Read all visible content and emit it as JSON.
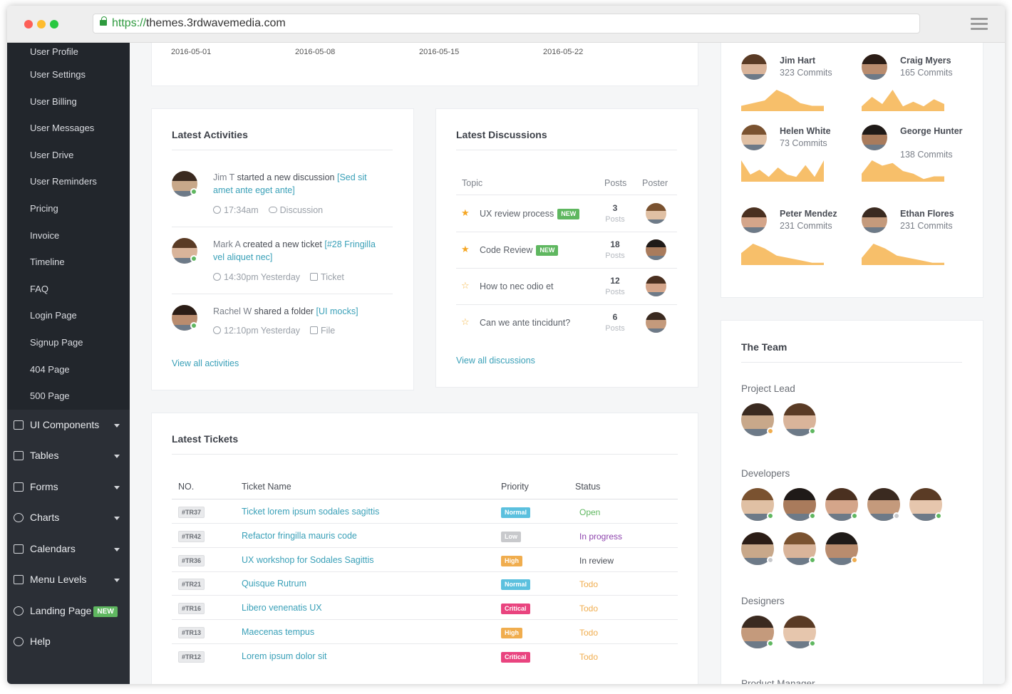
{
  "browser": {
    "url_protocol": "https://",
    "url_host": "themes.3rdwavemedia.com"
  },
  "sidebar": {
    "sub_items": [
      "User Profile",
      "User Settings",
      "User Billing",
      "User Messages",
      "User Drive",
      "User Reminders",
      "Pricing",
      "Invoice",
      "Timeline",
      "FAQ",
      "Login Page",
      "Signup Page",
      "404 Page",
      "500 Page"
    ],
    "nav_items": [
      {
        "label": "UI Components",
        "icon": "cube-icon",
        "caret": true
      },
      {
        "label": "Tables",
        "icon": "table-icon",
        "caret": true
      },
      {
        "label": "Forms",
        "icon": "edit-icon",
        "caret": true
      },
      {
        "label": "Charts",
        "icon": "pie-chart-icon",
        "caret": true
      },
      {
        "label": "Calendars",
        "icon": "calendar-icon",
        "caret": true
      },
      {
        "label": "Menu Levels",
        "icon": "sitemap-icon",
        "caret": true
      },
      {
        "label": "Landing Page",
        "icon": "heart-icon",
        "caret": false,
        "badge": "NEW"
      },
      {
        "label": "Help",
        "icon": "lifebuoy-icon",
        "caret": false
      }
    ]
  },
  "chart_axis": {
    "dates": [
      "2016-05-01",
      "2016-05-08",
      "2016-05-15",
      "2016-05-22"
    ]
  },
  "activities": {
    "title": "Latest Activities",
    "items": [
      {
        "actor": "Jim T",
        "action": "started a new discussion",
        "target": "[Sed sit amet ante eget ante]",
        "time": "17:34am",
        "type": "Discussion",
        "status": "#5fb760"
      },
      {
        "actor": "Mark A",
        "action": "created a new ticket",
        "target": "[#28 Fringilla vel aliquet nec]",
        "time": "14:30pm Yesterday",
        "type": "Ticket",
        "status": "#5fb760"
      },
      {
        "actor": "Rachel W",
        "action": "shared a folder",
        "target": "[UI mocks]",
        "time": "12:10pm Yesterday",
        "type": "File",
        "status": "#5fb760"
      }
    ],
    "view_all": "View all activities"
  },
  "discussions": {
    "title": "Latest Discussions",
    "headers": {
      "topic": "Topic",
      "posts": "Posts",
      "poster": "Poster"
    },
    "posts_label": "Posts",
    "new_label": "NEW",
    "rows": [
      {
        "topic": "UX review process",
        "posts": "3",
        "starred": true,
        "is_new": true
      },
      {
        "topic": "Code Review",
        "posts": "18",
        "starred": true,
        "is_new": true
      },
      {
        "topic": "How to nec odio et",
        "posts": "12",
        "starred": false,
        "is_new": false
      },
      {
        "topic": "Can we ante tincidunt?",
        "posts": "6",
        "starred": false,
        "is_new": false
      }
    ],
    "view_all": "View all discussions"
  },
  "tickets": {
    "title": "Latest Tickets",
    "headers": {
      "no": "NO.",
      "name": "Ticket Name",
      "priority": "Priority",
      "status": "Status"
    },
    "rows": [
      {
        "no": "#TR37",
        "name": "Ticket lorem ipsum sodales sagittis",
        "priority": "Normal",
        "priority_color": "#5bc0de",
        "status": "Open",
        "status_color": "#5fb760"
      },
      {
        "no": "#TR42",
        "name": "Refactor fringilla mauris code",
        "priority": "Low",
        "priority_color": "#c8c9cc",
        "status": "In progress",
        "status_color": "#8e44ad"
      },
      {
        "no": "#TR36",
        "name": "UX workshop for Sodales Sagittis",
        "priority": "High",
        "priority_color": "#f0ad4e",
        "status": "In review",
        "status_color": "#494d55"
      },
      {
        "no": "#TR21",
        "name": "Quisque Rutrum",
        "priority": "Normal",
        "priority_color": "#5bc0de",
        "status": "Todo",
        "status_color": "#f0ad4e"
      },
      {
        "no": "#TR16",
        "name": "Libero venenatis UX",
        "priority": "Critical",
        "priority_color": "#e9447f",
        "status": "Todo",
        "status_color": "#f0ad4e"
      },
      {
        "no": "#TR13",
        "name": "Maecenas tempus",
        "priority": "High",
        "priority_color": "#f0ad4e",
        "status": "Todo",
        "status_color": "#f0ad4e"
      },
      {
        "no": "#TR12",
        "name": "Lorem ipsum dolor sit",
        "priority": "Critical",
        "priority_color": "#e9447f",
        "status": "Todo",
        "status_color": "#f0ad4e"
      }
    ]
  },
  "committers": [
    {
      "name": "Jim Hart",
      "commits": "323 Commits",
      "spark": [
        2,
        3,
        4,
        8,
        6,
        3,
        2,
        2
      ]
    },
    {
      "name": "Craig Myers",
      "commits": "165 Commits",
      "spark": [
        2,
        6,
        3,
        9,
        2,
        4,
        2,
        5,
        3
      ]
    },
    {
      "name": "Helen White",
      "commits": "73 Commits",
      "spark": [
        9,
        3,
        5,
        2,
        6,
        3,
        2,
        7,
        2,
        9
      ]
    },
    {
      "name": "George Hunter",
      "commits": "138 Commits",
      "spark": [
        3,
        8,
        6,
        7,
        4,
        3,
        1,
        2,
        2
      ]
    },
    {
      "name": "Peter Mendez",
      "commits": "231 Commits",
      "spark": [
        5,
        9,
        7,
        4,
        3,
        2,
        1,
        1
      ]
    },
    {
      "name": "Ethan Flores",
      "commits": "231 Commits",
      "spark": [
        3,
        9,
        7,
        4,
        3,
        2,
        1,
        1
      ]
    }
  ],
  "team": {
    "title": "The Team",
    "groups": [
      {
        "label": "Project Lead",
        "members": [
          {
            "status": "#f0ad4e"
          },
          {
            "status": "#5fb760"
          }
        ]
      },
      {
        "label": "Developers",
        "members": [
          {
            "status": "#5fb760"
          },
          {
            "status": "#5fb760"
          },
          {
            "status": "#5fb760"
          },
          {
            "status": "#c8c9cc"
          },
          {
            "status": "#5fb760"
          },
          {
            "status": "#c8c9cc"
          },
          {
            "status": "#5fb760"
          },
          {
            "status": "#f0ad4e"
          }
        ]
      },
      {
        "label": "Designers",
        "members": [
          {
            "status": "#5fb760"
          },
          {
            "status": "#5fb760"
          }
        ]
      }
    ],
    "next_label": "Product Manager"
  },
  "colors": {
    "accent": "#3aa0b8",
    "sparkline": "#f7bf6a",
    "sidebar_bg": "#2b2f36"
  }
}
